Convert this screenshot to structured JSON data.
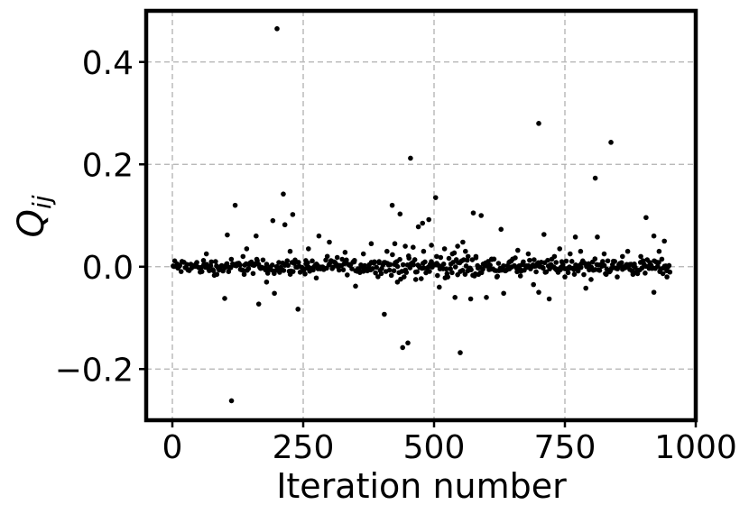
{
  "chart_data": {
    "type": "scatter",
    "title": "",
    "xlabel": "Iteration number",
    "ylabel": {
      "main": "Q",
      "sub": "ij"
    },
    "xlim": [
      -50,
      1000
    ],
    "ylim": [
      -0.3,
      0.5
    ],
    "xticks": [
      0,
      250,
      500,
      750,
      1000
    ],
    "xtick_labels": [
      "0",
      "250",
      "500",
      "750",
      "1000"
    ],
    "yticks": [
      -0.2,
      0.0,
      0.2,
      0.4
    ],
    "ytick_labels": [
      "−0.2",
      "0.0",
      "0.2",
      "0.4"
    ],
    "grid": true,
    "marker_color": "#000000",
    "series": [
      {
        "points": [
          [
            200,
            0.465
          ],
          [
            113,
            -0.262
          ],
          [
            120,
            0.12
          ],
          [
            212,
            0.142
          ],
          [
            230,
            0.102
          ],
          [
            215,
            0.082
          ],
          [
            192,
            0.09
          ],
          [
            240,
            -0.083
          ],
          [
            160,
            0.06
          ],
          [
            105,
            0.062
          ],
          [
            100,
            -0.062
          ],
          [
            165,
            -0.073
          ],
          [
            195,
            -0.052
          ],
          [
            455,
            0.212
          ],
          [
            440,
            -0.158
          ],
          [
            450,
            -0.149
          ],
          [
            405,
            -0.093
          ],
          [
            550,
            -0.168
          ],
          [
            503,
            0.135
          ],
          [
            420,
            0.12
          ],
          [
            435,
            0.103
          ],
          [
            478,
            0.085
          ],
          [
            490,
            0.092
          ],
          [
            470,
            0.078
          ],
          [
            575,
            0.105
          ],
          [
            590,
            0.1
          ],
          [
            628,
            0.073
          ],
          [
            540,
            -0.06
          ],
          [
            570,
            -0.063
          ],
          [
            600,
            -0.06
          ],
          [
            700,
            0.28
          ],
          [
            838,
            0.243
          ],
          [
            808,
            0.173
          ],
          [
            905,
            0.096
          ],
          [
            812,
            0.058
          ],
          [
            770,
            0.058
          ],
          [
            710,
            0.063
          ],
          [
            720,
            -0.063
          ],
          [
            920,
            0.06
          ],
          [
            940,
            0.05
          ],
          [
            920,
            -0.05
          ],
          [
            790,
            -0.042
          ],
          [
            700,
            -0.05
          ],
          [
            690,
            -0.035
          ],
          [
            280,
            0.06
          ],
          [
            300,
            0.048
          ],
          [
            350,
            -0.038
          ],
          [
            510,
            -0.04
          ],
          [
            633,
            -0.052
          ],
          [
            660,
            0.032
          ],
          [
            380,
            0.045
          ],
          [
            260,
            0.035
          ],
          [
            142,
            0.035
          ],
          [
            65,
            0.025
          ],
          [
            85,
            -0.015
          ],
          [
            135,
            0.02
          ],
          [
            180,
            -0.03
          ],
          [
            225,
            0.03
          ],
          [
            255,
            0.012
          ],
          [
            275,
            -0.022
          ],
          [
            315,
            0.018
          ],
          [
            330,
            0.028
          ],
          [
            365,
            0.025
          ],
          [
            395,
            0.01
          ],
          [
            410,
            0.03
          ],
          [
            425,
            0.045
          ],
          [
            430,
            -0.03
          ],
          [
            445,
            0.04
          ],
          [
            460,
            0.038
          ],
          [
            465,
            -0.025
          ],
          [
            480,
            0.03
          ],
          [
            495,
            0.042
          ],
          [
            505,
            0.02
          ],
          [
            520,
            0.035
          ],
          [
            525,
            -0.02
          ],
          [
            535,
            0.025
          ],
          [
            545,
            0.04
          ],
          [
            555,
            0.048
          ],
          [
            560,
            0.03
          ],
          [
            565,
            0.02
          ],
          [
            580,
            0.02
          ],
          [
            585,
            -0.015
          ],
          [
            610,
            0.015
          ],
          [
            620,
            -0.02
          ],
          [
            645,
            0.01
          ],
          [
            665,
            -0.018
          ],
          [
            680,
            0.025
          ],
          [
            695,
            -0.01
          ],
          [
            730,
            0.02
          ],
          [
            740,
            0.035
          ],
          [
            750,
            -0.02
          ],
          [
            760,
            0.025
          ],
          [
            780,
            0.03
          ],
          [
            800,
            -0.025
          ],
          [
            825,
            0.025
          ],
          [
            850,
            -0.02
          ],
          [
            860,
            0.02
          ],
          [
            870,
            0.03
          ],
          [
            880,
            -0.015
          ],
          [
            895,
            0.02
          ],
          [
            930,
            0.03
          ],
          [
            945,
            -0.02
          ]
        ]
      }
    ],
    "noise_band": {
      "x_start": 0,
      "x_end": 950,
      "step": 2,
      "amplitude": 0.022
    }
  }
}
